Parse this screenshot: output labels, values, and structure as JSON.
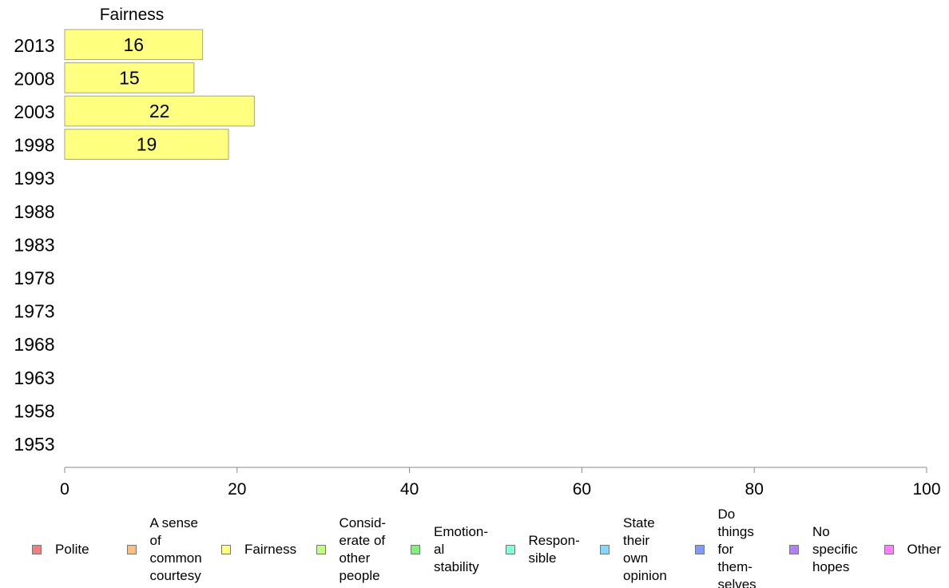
{
  "chart_data": {
    "type": "bar",
    "orientation": "horizontal",
    "series_title": "Fairness",
    "categories": [
      "2013",
      "2008",
      "2003",
      "1998",
      "1993",
      "1988",
      "1983",
      "1978",
      "1973",
      "1968",
      "1963",
      "1958",
      "1953"
    ],
    "series": [
      {
        "name": "Fairness",
        "color": "#ffff80",
        "values": [
          16,
          15,
          22,
          19,
          null,
          null,
          null,
          null,
          null,
          null,
          null,
          null,
          null
        ]
      }
    ],
    "xlim": [
      0,
      100
    ],
    "xticks": [
      "0",
      "20",
      "40",
      "60",
      "80",
      "100"
    ],
    "grid": false,
    "legend": [
      {
        "lines": [
          "Polite"
        ],
        "color": "#f08080"
      },
      {
        "lines": [
          "A sense",
          "of",
          "common",
          "courtesy"
        ],
        "color": "#f8c080"
      },
      {
        "lines": [
          "Fairness"
        ],
        "color": "#ffff80"
      },
      {
        "lines": [
          "Consid-",
          "erate of",
          "other",
          "people"
        ],
        "color": "#c0ff80"
      },
      {
        "lines": [
          "Emotion-",
          "al",
          "stability"
        ],
        "color": "#80f080"
      },
      {
        "lines": [
          "Respon-",
          "sible"
        ],
        "color": "#80ffd8"
      },
      {
        "lines": [
          "State",
          "their",
          "own",
          "opinion"
        ],
        "color": "#80d8ff"
      },
      {
        "lines": [
          "Do",
          "things",
          "for",
          "them-",
          "selves"
        ],
        "color": "#8098ff"
      },
      {
        "lines": [
          "No",
          "specific",
          "hopes"
        ],
        "color": "#b080ff"
      },
      {
        "lines": [
          "Other"
        ],
        "color": "#ff80ff"
      }
    ],
    "legend_position": "bottom"
  }
}
